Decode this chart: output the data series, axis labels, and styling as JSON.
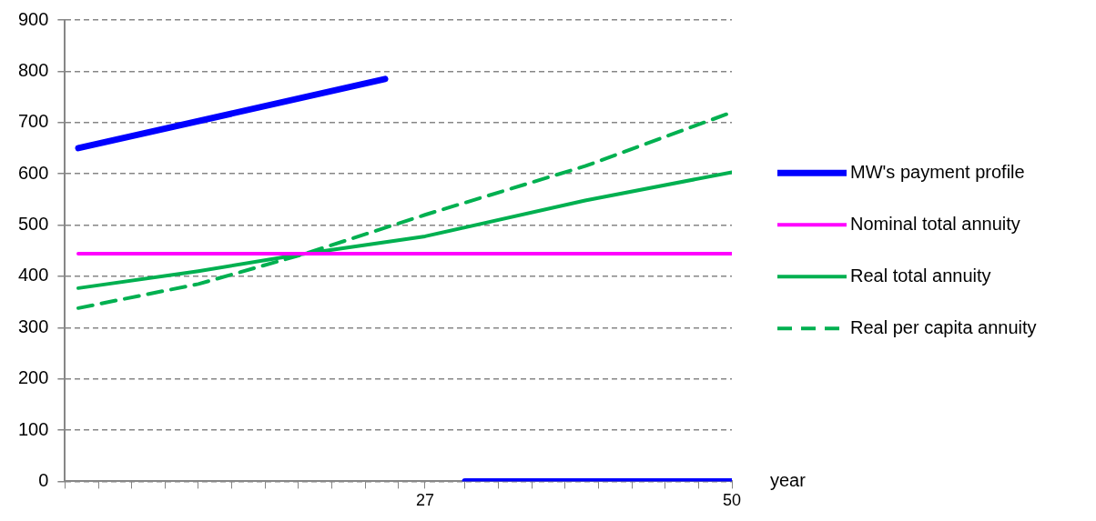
{
  "chart_data": {
    "type": "line",
    "xlabel": "year",
    "xlim": [
      0,
      50
    ],
    "ylim": [
      0,
      900
    ],
    "xticks": [
      {
        "value": 0,
        "label": null
      },
      {
        "value": 2.5,
        "label": null
      },
      {
        "value": 5,
        "label": null
      },
      {
        "value": 7.5,
        "label": null
      },
      {
        "value": 10,
        "label": null
      },
      {
        "value": 12.5,
        "label": null
      },
      {
        "value": 15,
        "label": null
      },
      {
        "value": 17.5,
        "label": null
      },
      {
        "value": 20,
        "label": null
      },
      {
        "value": 22.5,
        "label": null
      },
      {
        "value": 25,
        "label": null
      },
      {
        "value": 27,
        "label": "27"
      },
      {
        "value": 30,
        "label": null
      },
      {
        "value": 32.5,
        "label": null
      },
      {
        "value": 35,
        "label": null
      },
      {
        "value": 37.5,
        "label": null
      },
      {
        "value": 40,
        "label": null
      },
      {
        "value": 42.5,
        "label": null
      },
      {
        "value": 45,
        "label": null
      },
      {
        "value": 47.5,
        "label": null
      },
      50
    ],
    "yticks": [
      0,
      100,
      200,
      300,
      400,
      500,
      600,
      700,
      800,
      900
    ],
    "grid": "y",
    "legend": "right",
    "marker": "none",
    "series": [
      {
        "name": "MW's payment profile",
        "color": "#0000ff",
        "x": [
          1,
          24,
          27,
          30,
          50
        ],
        "values": [
          650,
          785,
          null,
          0,
          0
        ]
      },
      {
        "name": "Nominal total annuity",
        "color": "#ff00ff",
        "x": [
          1,
          50
        ],
        "values": [
          444,
          444
        ]
      },
      {
        "name": "Real total annuity",
        "color": "#00b050",
        "x": [
          1,
          10,
          18,
          27,
          39,
          50
        ],
        "values": [
          377,
          410,
          444,
          478,
          548,
          603
        ]
      },
      {
        "name": "Real per capita annuity",
        "color": "#00b050",
        "line_style": "dashed",
        "x": [
          1,
          10,
          18,
          27,
          39,
          50
        ],
        "values": [
          338,
          385,
          444,
          520,
          615,
          720
        ]
      }
    ]
  }
}
